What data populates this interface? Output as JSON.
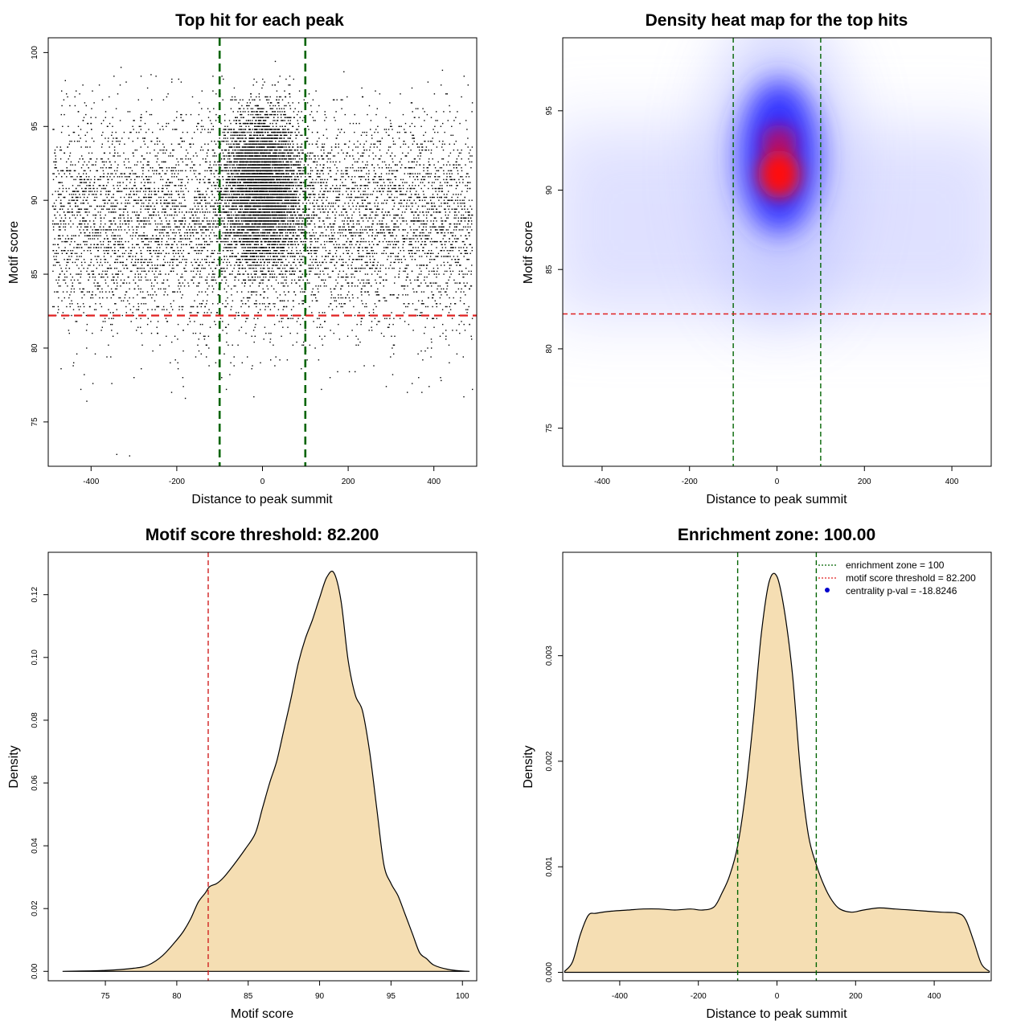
{
  "chart_data": [
    {
      "type": "scatter",
      "title": "Top hit for each peak",
      "xlabel": "Distance to peak summit",
      "ylabel": "Motif score",
      "xlim": [
        -500,
        500
      ],
      "ylim": [
        72,
        101
      ],
      "xticks": [
        -400,
        -200,
        0,
        200,
        400
      ],
      "yticks": [
        75,
        80,
        85,
        90,
        95,
        100
      ],
      "grid": false,
      "reference_lines": {
        "vertical": [
          -100,
          100
        ],
        "vertical_color": "#006400",
        "horizontal": [
          82.2
        ],
        "horizontal_color": "#e02020"
      },
      "distribution": {
        "x_range": [
          -490,
          490
        ],
        "background_score_mean": 88.5,
        "background_score_sd": 3.6,
        "central_mean_x": 0,
        "central_sd_x": 45,
        "central_score_mean": 91,
        "central_score_sd": 2.6
      },
      "outliers": [
        {
          "x": -340,
          "y": 72.8
        },
        {
          "x": -310,
          "y": 72.7
        },
        {
          "x": -410,
          "y": 76.4
        },
        {
          "x": -180,
          "y": 76.6
        },
        {
          "x": -20,
          "y": 76.7
        },
        {
          "x": 470,
          "y": 76.7
        },
        {
          "x": 490,
          "y": 77.2
        },
        {
          "x": 338,
          "y": 77.0
        },
        {
          "x": 100,
          "y": 77.3
        },
        {
          "x": 420,
          "y": 98.8
        },
        {
          "x": -330,
          "y": 99.0
        },
        {
          "x": 30,
          "y": 99.4
        },
        {
          "x": -260,
          "y": 98.5
        },
        {
          "x": -460,
          "y": 98.1
        },
        {
          "x": 190,
          "y": 98.7
        }
      ]
    },
    {
      "type": "heatmap",
      "title": "Density heat map for the top hits",
      "xlabel": "Distance to peak summit",
      "ylabel": "Motif score",
      "xlim": [
        -490,
        490
      ],
      "ylim": [
        72.6,
        99.6
      ],
      "xticks": [
        -400,
        -200,
        0,
        200,
        400
      ],
      "yticks": [
        75,
        80,
        85,
        90,
        95
      ],
      "colors": [
        "#ffffff",
        "#0000ff",
        "#ff0000"
      ],
      "reference_lines": {
        "vertical": [
          -100,
          100
        ],
        "vertical_color": "#006400",
        "horizontal": [
          82.2
        ],
        "horizontal_color": "#e02020"
      },
      "peak": {
        "x": 5,
        "y": 91
      }
    },
    {
      "type": "area",
      "title": "Motif score threshold: 82.200",
      "xlabel": "Motif score",
      "ylabel": "Density",
      "xlim": [
        71.0,
        101.0
      ],
      "ylim": [
        -0.003,
        0.1335
      ],
      "xticks": [
        75,
        80,
        85,
        90,
        95,
        100
      ],
      "yticks": [
        0.0,
        0.02,
        0.04,
        0.06,
        0.08,
        0.1,
        0.12
      ],
      "ytick_labels": [
        "0.00",
        "0.02",
        "0.04",
        "0.06",
        "0.08",
        "0.10",
        "0.12"
      ],
      "fill": "#f5deb3",
      "threshold_line": {
        "x": 82.2,
        "color": "#d02020"
      },
      "x": [
        72,
        75,
        77,
        78,
        79,
        80,
        80.5,
        81,
        81.5,
        82,
        82.3,
        82.8,
        83.3,
        84,
        84.8,
        85.5,
        86.0,
        86.5,
        87.0,
        87.5,
        88.0,
        88.5,
        89.0,
        89.5,
        90.0,
        90.5,
        91.0,
        91.5,
        92.0,
        92.5,
        93.0,
        93.5,
        94.0,
        94.5,
        95.0,
        95.5,
        96.0,
        96.5,
        97.0,
        97.5,
        98.0,
        99.0,
        100.0,
        100.5
      ],
      "y": [
        0.0,
        0.0003,
        0.001,
        0.002,
        0.005,
        0.01,
        0.013,
        0.017,
        0.022,
        0.025,
        0.027,
        0.028,
        0.03,
        0.034,
        0.039,
        0.044,
        0.052,
        0.06,
        0.067,
        0.077,
        0.087,
        0.098,
        0.106,
        0.112,
        0.119,
        0.1255,
        0.127,
        0.118,
        0.099,
        0.088,
        0.083,
        0.07,
        0.052,
        0.034,
        0.028,
        0.024,
        0.018,
        0.012,
        0.006,
        0.004,
        0.002,
        0.0006,
        0.0001,
        0.0
      ]
    },
    {
      "type": "area",
      "title": "Enrichment zone: 100.00",
      "xlabel": "Distance to peak summit",
      "ylabel": "Density",
      "xlim": [
        -545,
        545
      ],
      "ylim": [
        -8e-05,
        0.00398
      ],
      "xticks": [
        -400,
        -200,
        0,
        200,
        400
      ],
      "yticks": [
        0.0,
        0.001,
        0.002,
        0.003
      ],
      "ytick_labels": [
        "0.000",
        "0.001",
        "0.002",
        "0.003"
      ],
      "fill": "#f5deb3",
      "zone_lines": {
        "x": [
          -100,
          100
        ],
        "color": "#006400"
      },
      "x": [
        -540,
        -520,
        -500,
        -480,
        -460,
        -420,
        -380,
        -340,
        -300,
        -260,
        -220,
        -190,
        -160,
        -140,
        -120,
        -100,
        -80,
        -60,
        -40,
        -20,
        0,
        20,
        40,
        60,
        80,
        100,
        120,
        140,
        160,
        190,
        220,
        260,
        300,
        340,
        380,
        420,
        460,
        480,
        500,
        520,
        540
      ],
      "y": [
        1e-05,
        0.0001,
        0.00036,
        0.00054,
        0.00056,
        0.00058,
        0.00059,
        0.0006,
        0.0006,
        0.00059,
        0.0006,
        0.00059,
        0.00062,
        0.00075,
        0.00092,
        0.0012,
        0.0017,
        0.0024,
        0.0032,
        0.0037,
        0.00375,
        0.0034,
        0.0028,
        0.0019,
        0.0013,
        0.00102,
        0.00082,
        0.00068,
        0.0006,
        0.00057,
        0.00059,
        0.00061,
        0.0006,
        0.00059,
        0.00058,
        0.00057,
        0.00056,
        0.0005,
        0.0003,
        8e-05,
        1e-05
      ],
      "legend": {
        "position": "top-right",
        "entries": [
          {
            "label": "enrichment zone = 100",
            "style": "dotted-line",
            "color": "#006400"
          },
          {
            "label": "motif score threshold = 82.200",
            "style": "dotted-line",
            "color": "#e02020"
          },
          {
            "label": "centrality p-val = -18.8246",
            "style": "point",
            "color": "#0000cc"
          }
        ]
      }
    }
  ]
}
